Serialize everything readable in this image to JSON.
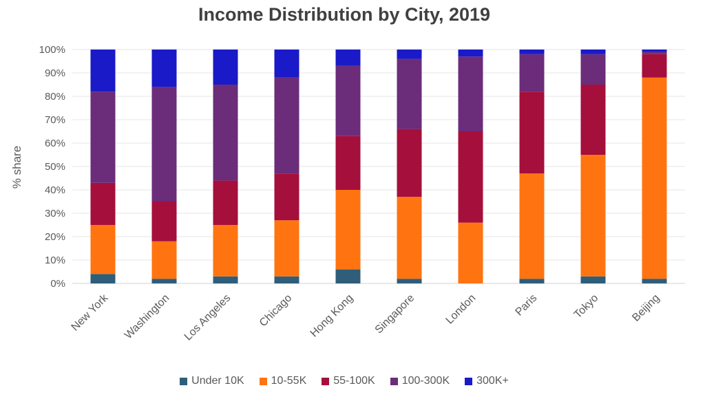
{
  "chart_data": {
    "type": "bar",
    "stacked": true,
    "title": "Income Distribution by City, 2019",
    "xlabel": "",
    "ylabel": "% share",
    "ylim": [
      0,
      100
    ],
    "yticks": [
      "0%",
      "10%",
      "20%",
      "30%",
      "40%",
      "50%",
      "60%",
      "70%",
      "80%",
      "90%",
      "100%"
    ],
    "grid": true,
    "legend_position": "bottom",
    "categories": [
      "New York",
      "Washington",
      "Los Angeles",
      "Chicago",
      "Hong Kong",
      "Singapore",
      "London",
      "Paris",
      "Tokyo",
      "Beijing"
    ],
    "series": [
      {
        "name": "Under 10K",
        "color": "#2e5e7a",
        "values": [
          4,
          2,
          3,
          3,
          6,
          2,
          0,
          2,
          3,
          2
        ]
      },
      {
        "name": "10-55K",
        "color": "#ff7410",
        "values": [
          21,
          16,
          22,
          24,
          34,
          35,
          26,
          45,
          52,
          86
        ]
      },
      {
        "name": "55-100K",
        "color": "#a50f3c",
        "values": [
          18,
          17,
          19,
          20,
          23,
          29,
          39,
          35,
          30,
          10
        ]
      },
      {
        "name": "100-300K",
        "color": "#6b2c7a",
        "values": [
          39,
          49,
          41,
          41,
          30,
          30,
          32,
          16,
          13,
          1
        ]
      },
      {
        "name": "300K+",
        "color": "#1a1ac8",
        "values": [
          18,
          16,
          15,
          12,
          7,
          4,
          3,
          2,
          2,
          1
        ]
      }
    ]
  }
}
